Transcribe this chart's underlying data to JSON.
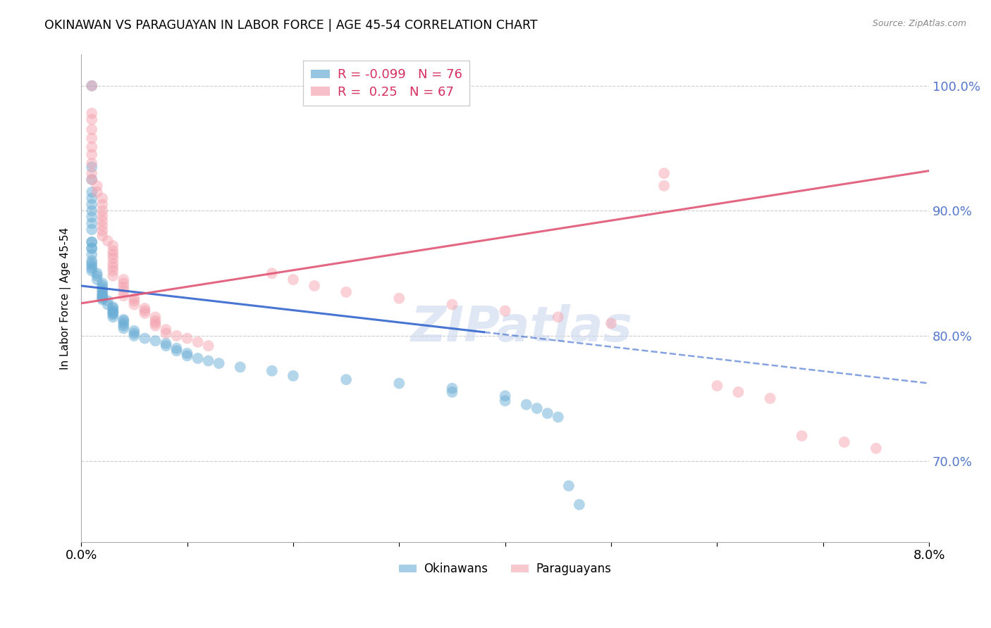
{
  "title": "OKINAWAN VS PARAGUAYAN IN LABOR FORCE | AGE 45-54 CORRELATION CHART",
  "source_text": "Source: ZipAtlas.com",
  "ylabel": "In Labor Force | Age 45-54",
  "xlim": [
    0.0,
    0.08
  ],
  "ylim": [
    0.635,
    1.025
  ],
  "xticks": [
    0.0,
    0.01,
    0.02,
    0.03,
    0.04,
    0.05,
    0.06,
    0.07,
    0.08
  ],
  "yticks": [
    0.7,
    0.8,
    0.9,
    1.0
  ],
  "blue_color": "#6baed6",
  "pink_color": "#f4a4b0",
  "blue_line_color": "#3366cc",
  "pink_line_color": "#e05575",
  "blue_r": -0.099,
  "blue_n": 76,
  "pink_r": 0.25,
  "pink_n": 67,
  "watermark": "ZIPatlas",
  "legend_blue_label": "Okinawans",
  "legend_pink_label": "Paraguayans",
  "background_color": "#ffffff",
  "grid_color": "#cccccc",
  "axis_color": "#5577cc",
  "title_fontsize": 12.5,
  "label_fontsize": 11,
  "tick_fontsize": 12,
  "blue_scatter_x": [
    0.001,
    0.001,
    0.001,
    0.001,
    0.001,
    0.001,
    0.001,
    0.001,
    0.001,
    0.001,
    0.001,
    0.001,
    0.001,
    0.001,
    0.001,
    0.001,
    0.001,
    0.001,
    0.001,
    0.001,
    0.0015,
    0.0015,
    0.0015,
    0.002,
    0.002,
    0.002,
    0.002,
    0.002,
    0.002,
    0.002,
    0.002,
    0.002,
    0.002,
    0.0025,
    0.0025,
    0.003,
    0.003,
    0.003,
    0.003,
    0.003,
    0.003,
    0.003,
    0.004,
    0.004,
    0.004,
    0.004,
    0.004,
    0.005,
    0.005,
    0.005,
    0.006,
    0.007,
    0.008,
    0.008,
    0.009,
    0.009,
    0.01,
    0.01,
    0.011,
    0.012,
    0.013,
    0.015,
    0.018,
    0.02,
    0.025,
    0.03,
    0.035,
    0.035,
    0.04,
    0.04,
    0.042,
    0.043,
    0.044,
    0.045,
    0.046,
    0.047
  ],
  "blue_scatter_y": [
    1.0,
    0.935,
    0.925,
    0.915,
    0.91,
    0.905,
    0.9,
    0.895,
    0.89,
    0.885,
    0.875,
    0.875,
    0.87,
    0.87,
    0.865,
    0.86,
    0.858,
    0.856,
    0.854,
    0.852,
    0.85,
    0.848,
    0.845,
    0.842,
    0.84,
    0.838,
    0.836,
    0.835,
    0.833,
    0.832,
    0.831,
    0.83,
    0.829,
    0.828,
    0.825,
    0.823,
    0.822,
    0.82,
    0.819,
    0.818,
    0.817,
    0.815,
    0.813,
    0.812,
    0.81,
    0.808,
    0.806,
    0.804,
    0.802,
    0.8,
    0.798,
    0.796,
    0.794,
    0.792,
    0.79,
    0.788,
    0.786,
    0.784,
    0.782,
    0.78,
    0.778,
    0.775,
    0.772,
    0.768,
    0.765,
    0.762,
    0.758,
    0.755,
    0.752,
    0.748,
    0.745,
    0.742,
    0.738,
    0.735,
    0.68,
    0.665
  ],
  "pink_scatter_x": [
    0.001,
    0.001,
    0.001,
    0.001,
    0.001,
    0.001,
    0.001,
    0.001,
    0.001,
    0.001,
    0.0015,
    0.0015,
    0.002,
    0.002,
    0.002,
    0.002,
    0.002,
    0.002,
    0.002,
    0.002,
    0.0025,
    0.003,
    0.003,
    0.003,
    0.003,
    0.003,
    0.003,
    0.003,
    0.003,
    0.004,
    0.004,
    0.004,
    0.004,
    0.004,
    0.005,
    0.005,
    0.005,
    0.006,
    0.006,
    0.006,
    0.007,
    0.007,
    0.007,
    0.007,
    0.008,
    0.008,
    0.009,
    0.01,
    0.011,
    0.012,
    0.018,
    0.02,
    0.022,
    0.025,
    0.03,
    0.035,
    0.04,
    0.045,
    0.05,
    0.055,
    0.055,
    0.06,
    0.062,
    0.065,
    0.068,
    0.072,
    0.075
  ],
  "pink_scatter_y": [
    1.0,
    0.978,
    0.973,
    0.965,
    0.958,
    0.951,
    0.945,
    0.938,
    0.93,
    0.925,
    0.92,
    0.915,
    0.91,
    0.905,
    0.9,
    0.896,
    0.892,
    0.888,
    0.884,
    0.88,
    0.876,
    0.872,
    0.868,
    0.865,
    0.862,
    0.858,
    0.855,
    0.852,
    0.848,
    0.845,
    0.842,
    0.839,
    0.836,
    0.832,
    0.83,
    0.828,
    0.825,
    0.822,
    0.82,
    0.818,
    0.815,
    0.812,
    0.81,
    0.808,
    0.805,
    0.802,
    0.8,
    0.798,
    0.795,
    0.792,
    0.85,
    0.845,
    0.84,
    0.835,
    0.83,
    0.825,
    0.82,
    0.815,
    0.81,
    0.93,
    0.92,
    0.76,
    0.755,
    0.75,
    0.72,
    0.715,
    0.71
  ]
}
